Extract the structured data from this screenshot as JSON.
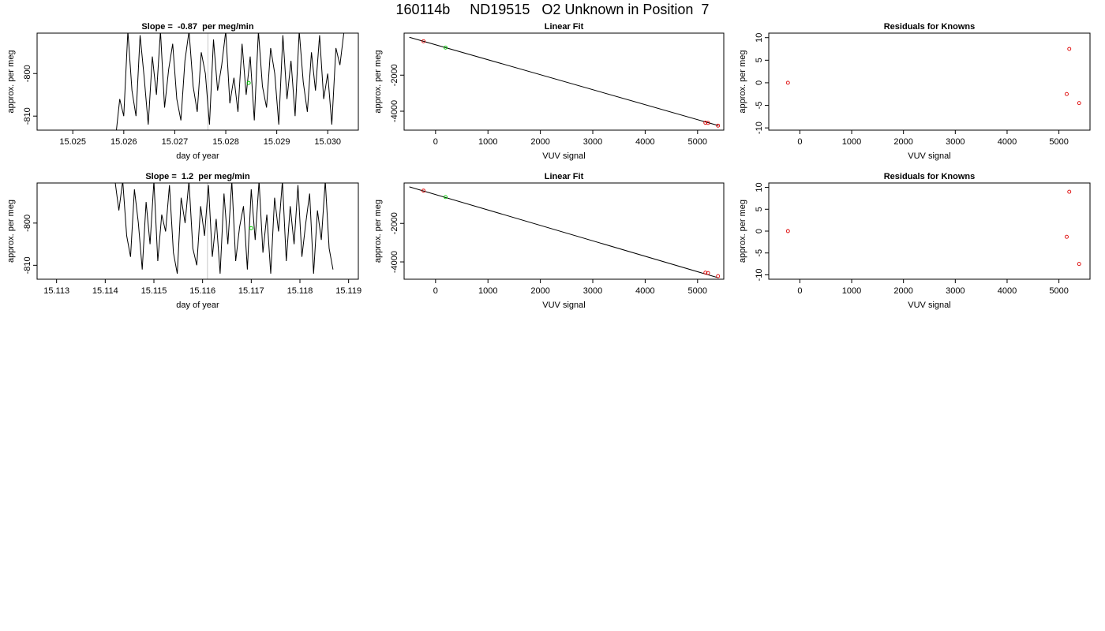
{
  "figure": {
    "title": "160114b     ND19515   O2 Unknown in Position  7"
  },
  "chart_data": [
    {
      "type": "line",
      "title": "Slope =  -0.87  per meg/min",
      "xlabel": "day of year",
      "ylabel": "approx. per meg",
      "xlim": [
        15.0243,
        15.0306
      ],
      "ylim": [
        -813.3,
        -790.5
      ],
      "x_ticks": [
        15.025,
        15.026,
        15.027,
        15.028,
        15.029,
        15.03
      ],
      "x_tick_labels": [
        "15.025",
        "15.026",
        "15.027",
        "15.028",
        "15.029",
        "15.030"
      ],
      "y_ticks": [
        -800,
        -810
      ],
      "y_tick_labels": [
        "-800",
        "-810"
      ],
      "series": [
        {
          "color": "#000000",
          "x": [
            15.02584,
            15.02592,
            15.026,
            15.02608,
            15.02616,
            15.02624,
            15.02632,
            15.0264,
            15.02648,
            15.02656,
            15.02664,
            15.02672,
            15.0268,
            15.02688,
            15.02696,
            15.02704,
            15.02712,
            15.0272,
            15.02728,
            15.02736,
            15.02744,
            15.02752,
            15.0276,
            15.02768,
            15.02776,
            15.02784,
            15.02792,
            15.028,
            15.02808,
            15.02816,
            15.02824,
            15.02832,
            15.0284,
            15.02848,
            15.02856,
            15.02864,
            15.02872,
            15.0288,
            15.02888,
            15.02896,
            15.02904,
            15.02912,
            15.0292,
            15.02928,
            15.02936,
            15.02944,
            15.02952,
            15.0296,
            15.02968,
            15.02976,
            15.02984,
            15.02992,
            15.03,
            15.03008,
            15.03016,
            15.03024,
            15.03032
          ],
          "y": [
            -815,
            -806,
            -810,
            -790,
            -804,
            -810,
            -791,
            -801,
            -812,
            -796,
            -805,
            -790,
            -808,
            -799,
            -793,
            -806,
            -811,
            -797,
            -790,
            -803,
            -809,
            -795,
            -800,
            -812,
            -792,
            -804,
            -798,
            -790,
            -807,
            -801,
            -809,
            -793,
            -805,
            -796,
            -811,
            -790,
            -803,
            -808,
            -794,
            -800,
            -812,
            -791,
            -806,
            -797,
            -810,
            -790,
            -802,
            -809,
            -795,
            -804,
            -791,
            -806,
            -800,
            -812,
            -794,
            -798,
            -790
          ]
        }
      ],
      "marker": {
        "x": 15.02845,
        "y": -802.2,
        "color": "#00cc00"
      },
      "vline": {
        "x": 15.02765,
        "color": "#c8c8c8"
      }
    },
    {
      "type": "line",
      "title": "Linear Fit",
      "xlabel": "VUV signal",
      "ylabel": "approx. per meg",
      "xlim": [
        -600,
        5500
      ],
      "ylim": [
        -5050,
        330
      ],
      "x_ticks": [
        0,
        1000,
        2000,
        3000,
        4000,
        5000
      ],
      "x_tick_labels": [
        "0",
        "1000",
        "2000",
        "3000",
        "4000",
        "5000"
      ],
      "y_ticks": [
        -2000,
        -4000
      ],
      "y_tick_labels": [
        "-2000",
        "-4000"
      ],
      "fit_line": {
        "x": [
          -500,
          5400
        ],
        "y": [
          100,
          -4800
        ]
      },
      "points_red": {
        "x": [
          -230,
          5150,
          5200,
          5390
        ],
        "y": [
          -120,
          -4640,
          -4650,
          -4800
        ]
      },
      "points_green": {
        "x": [
          190
        ],
        "y": [
          -470
        ]
      }
    },
    {
      "type": "scatter",
      "title": "Residuals for Knowns",
      "xlabel": "VUV signal",
      "ylabel": "approx. per meg",
      "xlim": [
        -600,
        5600
      ],
      "ylim": [
        -10.5,
        11
      ],
      "x_ticks": [
        0,
        1000,
        2000,
        3000,
        4000,
        5000
      ],
      "x_tick_labels": [
        "0",
        "1000",
        "2000",
        "3000",
        "4000",
        "5000"
      ],
      "y_ticks": [
        10,
        5,
        0,
        -5,
        -10
      ],
      "y_tick_labels": [
        "10",
        "5",
        "0",
        "-5",
        "-10"
      ],
      "points_red": {
        "x": [
          -230,
          5200,
          5150,
          5390
        ],
        "y": [
          0,
          7.5,
          -2.5,
          -4.5
        ]
      }
    },
    {
      "type": "line",
      "title": "Slope =  1.2  per meg/min",
      "xlabel": "day of year",
      "ylabel": "approx. per meg",
      "xlim": [
        15.1126,
        15.1192
      ],
      "ylim": [
        -813.3,
        -790.5
      ],
      "x_ticks": [
        15.113,
        15.114,
        15.115,
        15.116,
        15.117,
        15.118,
        15.119
      ],
      "x_tick_labels": [
        "15.113",
        "15.114",
        "15.115",
        "15.116",
        "15.117",
        "15.118",
        "15.119"
      ],
      "y_ticks": [
        -800,
        -810
      ],
      "y_tick_labels": [
        "-800",
        "-810"
      ],
      "series": [
        {
          "color": "#000000",
          "x": [
            15.1142,
            15.11428,
            15.11436,
            15.11444,
            15.11452,
            15.1146,
            15.11468,
            15.11476,
            15.11484,
            15.11492,
            15.115,
            15.11508,
            15.11516,
            15.11524,
            15.11532,
            15.1154,
            15.11548,
            15.11556,
            15.11564,
            15.11572,
            15.1158,
            15.11588,
            15.11596,
            15.11604,
            15.11612,
            15.1162,
            15.11628,
            15.11636,
            15.11644,
            15.11652,
            15.1166,
            15.11668,
            15.11676,
            15.11684,
            15.11692,
            15.117,
            15.11708,
            15.11716,
            15.11724,
            15.11732,
            15.1174,
            15.11748,
            15.11756,
            15.11764,
            15.11772,
            15.1178,
            15.11788,
            15.11796,
            15.11804,
            15.11812,
            15.1182,
            15.11828,
            15.11836,
            15.11844,
            15.11852,
            15.1186,
            15.11868
          ],
          "y": [
            -790,
            -797,
            -790,
            -803,
            -808,
            -792,
            -800,
            -811,
            -795,
            -805,
            -790,
            -809,
            -798,
            -802,
            -791,
            -807,
            -812,
            -794,
            -800,
            -790,
            -806,
            -810,
            -796,
            -803,
            -791,
            -808,
            -799,
            -812,
            -793,
            -805,
            -790,
            -809,
            -801,
            -796,
            -811,
            -792,
            -804,
            -790,
            -807,
            -798,
            -812,
            -794,
            -802,
            -790,
            -809,
            -796,
            -805,
            -791,
            -808,
            -800,
            -793,
            -812,
            -797,
            -804,
            -790,
            -806,
            -811
          ]
        }
      ],
      "marker": {
        "x": 15.117,
        "y": -801.2,
        "color": "#00cc00"
      },
      "vline": {
        "x": 15.1161,
        "color": "#c8c8c8"
      }
    },
    {
      "type": "line",
      "title": "Linear Fit",
      "xlabel": "VUV signal",
      "ylabel": "approx. per meg",
      "xlim": [
        -600,
        5500
      ],
      "ylim": [
        -4900,
        100
      ],
      "x_ticks": [
        0,
        1000,
        2000,
        3000,
        4000,
        5000
      ],
      "x_tick_labels": [
        "0",
        "1000",
        "2000",
        "3000",
        "4000",
        "5000"
      ],
      "y_ticks": [
        -2000,
        -4000
      ],
      "y_tick_labels": [
        "-2000",
        "-4000"
      ],
      "fit_line": {
        "x": [
          -500,
          5400
        ],
        "y": [
          -100,
          -4830
        ]
      },
      "points_red": {
        "x": [
          -230,
          5150,
          5200,
          5390
        ],
        "y": [
          -300,
          -4560,
          -4580,
          -4740
        ]
      },
      "points_green": {
        "x": [
          190
        ],
        "y": [
          -630
        ]
      }
    },
    {
      "type": "scatter",
      "title": "Residuals for Knowns",
      "xlabel": "VUV signal",
      "ylabel": "approx. per meg",
      "xlim": [
        -600,
        5600
      ],
      "ylim": [
        -11,
        11
      ],
      "x_ticks": [
        0,
        1000,
        2000,
        3000,
        4000,
        5000
      ],
      "x_tick_labels": [
        "0",
        "1000",
        "2000",
        "3000",
        "4000",
        "5000"
      ],
      "y_ticks": [
        10,
        5,
        0,
        -5,
        -10
      ],
      "y_tick_labels": [
        "10",
        "5",
        "0",
        "-5",
        "-10"
      ],
      "points_red": {
        "x": [
          -230,
          5200,
          5150,
          5390
        ],
        "y": [
          0,
          9,
          -1.3,
          -7.5
        ]
      }
    }
  ]
}
